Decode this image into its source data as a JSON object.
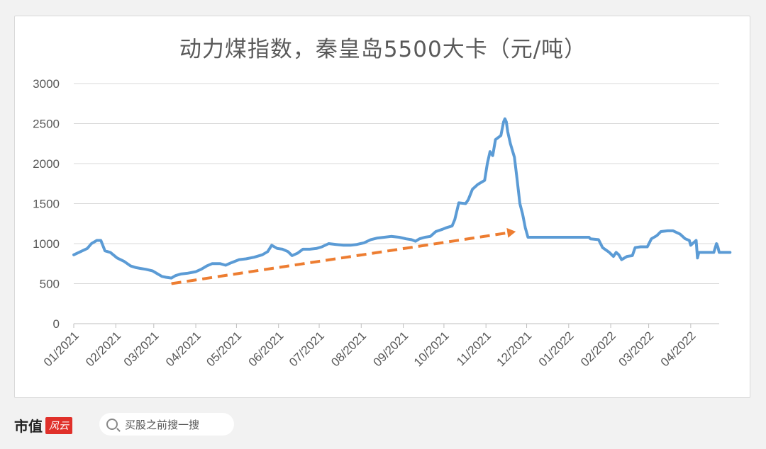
{
  "chart_data": {
    "type": "line",
    "title": "动力煤指数，秦皇岛5500大卡（元/吨）",
    "ylim": [
      0,
      3000
    ],
    "yticks": [
      0,
      500,
      1000,
      1500,
      2000,
      2500,
      3000
    ],
    "xtick_labels": [
      "01/2021",
      "02/2021",
      "03/2021",
      "04/2021",
      "05/2021",
      "06/2021",
      "07/2021",
      "08/2021",
      "09/2021",
      "10/2021",
      "11/2021",
      "12/2021",
      "01/2022",
      "02/2022",
      "03/2022",
      "04/2022"
    ],
    "x_range": [
      "2021-01-01",
      "2022-04-22"
    ],
    "grid": true,
    "series": [
      {
        "color": "#5b9bd5",
        "points": [
          [
            "2021-01-01",
            860
          ],
          [
            "2021-01-06",
            900
          ],
          [
            "2021-01-11",
            940
          ],
          [
            "2021-01-14",
            1000
          ],
          [
            "2021-01-18",
            1040
          ],
          [
            "2021-01-21",
            1040
          ],
          [
            "2021-01-24",
            910
          ],
          [
            "2021-01-28",
            890
          ],
          [
            "2021-02-02",
            820
          ],
          [
            "2021-02-07",
            780
          ],
          [
            "2021-02-12",
            720
          ],
          [
            "2021-02-16",
            700
          ],
          [
            "2021-02-19",
            690
          ],
          [
            "2021-02-23",
            680
          ],
          [
            "2021-02-28",
            660
          ],
          [
            "2021-03-04",
            620
          ],
          [
            "2021-03-07",
            590
          ],
          [
            "2021-03-10",
            580
          ],
          [
            "2021-03-14",
            570
          ],
          [
            "2021-03-17",
            600
          ],
          [
            "2021-03-21",
            620
          ],
          [
            "2021-03-26",
            630
          ],
          [
            "2021-04-01",
            650
          ],
          [
            "2021-04-05",
            680
          ],
          [
            "2021-04-09",
            720
          ],
          [
            "2021-04-13",
            750
          ],
          [
            "2021-04-19",
            750
          ],
          [
            "2021-04-23",
            730
          ],
          [
            "2021-04-27",
            760
          ],
          [
            "2021-05-03",
            800
          ],
          [
            "2021-05-08",
            810
          ],
          [
            "2021-05-14",
            830
          ],
          [
            "2021-05-20",
            860
          ],
          [
            "2021-05-24",
            900
          ],
          [
            "2021-05-27",
            980
          ],
          [
            "2021-05-31",
            940
          ],
          [
            "2021-06-04",
            930
          ],
          [
            "2021-06-08",
            900
          ],
          [
            "2021-06-11",
            850
          ],
          [
            "2021-06-15",
            880
          ],
          [
            "2021-06-19",
            930
          ],
          [
            "2021-06-24",
            930
          ],
          [
            "2021-06-29",
            940
          ],
          [
            "2021-07-03",
            960
          ],
          [
            "2021-07-08",
            1000
          ],
          [
            "2021-07-13",
            990
          ],
          [
            "2021-07-19",
            980
          ],
          [
            "2021-07-24",
            980
          ],
          [
            "2021-07-29",
            990
          ],
          [
            "2021-08-03",
            1010
          ],
          [
            "2021-08-08",
            1050
          ],
          [
            "2021-08-13",
            1070
          ],
          [
            "2021-08-18",
            1080
          ],
          [
            "2021-08-23",
            1090
          ],
          [
            "2021-08-29",
            1080
          ],
          [
            "2021-09-03",
            1060
          ],
          [
            "2021-09-07",
            1050
          ],
          [
            "2021-09-10",
            1030
          ],
          [
            "2021-09-13",
            1060
          ],
          [
            "2021-09-17",
            1080
          ],
          [
            "2021-09-21",
            1090
          ],
          [
            "2021-09-25",
            1150
          ],
          [
            "2021-09-30",
            1180
          ],
          [
            "2021-10-03",
            1200
          ],
          [
            "2021-10-07",
            1220
          ],
          [
            "2021-10-09",
            1300
          ],
          [
            "2021-10-12",
            1510
          ],
          [
            "2021-10-17",
            1500
          ],
          [
            "2021-10-19",
            1550
          ],
          [
            "2021-10-22",
            1680
          ],
          [
            "2021-10-26",
            1740
          ],
          [
            "2021-10-31",
            1790
          ],
          [
            "2021-11-02",
            2000
          ],
          [
            "2021-11-04",
            2150
          ],
          [
            "2021-11-06",
            2100
          ],
          [
            "2021-11-08",
            2300
          ],
          [
            "2021-11-12",
            2350
          ],
          [
            "2021-11-14",
            2520
          ],
          [
            "2021-11-15",
            2560
          ],
          [
            "2021-11-16",
            2520
          ],
          [
            "2021-11-17",
            2400
          ],
          [
            "2021-11-19",
            2250
          ],
          [
            "2021-11-22",
            2080
          ],
          [
            "2021-11-24",
            1800
          ],
          [
            "2021-11-26",
            1500
          ],
          [
            "2021-11-28",
            1370
          ],
          [
            "2021-11-30",
            1200
          ],
          [
            "2021-12-02",
            1080
          ],
          [
            "2021-12-31",
            1080
          ],
          [
            "2022-01-16",
            1080
          ],
          [
            "2022-01-17",
            1060
          ],
          [
            "2022-01-23",
            1050
          ],
          [
            "2022-01-26",
            950
          ],
          [
            "2022-01-31",
            890
          ],
          [
            "2022-02-03",
            840
          ],
          [
            "2022-02-05",
            890
          ],
          [
            "2022-02-07",
            860
          ],
          [
            "2022-02-09",
            800
          ],
          [
            "2022-02-13",
            840
          ],
          [
            "2022-02-17",
            850
          ],
          [
            "2022-02-19",
            950
          ],
          [
            "2022-02-23",
            960
          ],
          [
            "2022-02-28",
            960
          ],
          [
            "2022-03-03",
            1060
          ],
          [
            "2022-03-07",
            1100
          ],
          [
            "2022-03-10",
            1150
          ],
          [
            "2022-03-15",
            1160
          ],
          [
            "2022-03-19",
            1160
          ],
          [
            "2022-03-24",
            1120
          ],
          [
            "2022-03-28",
            1060
          ],
          [
            "2022-03-31",
            1040
          ],
          [
            "2022-04-01",
            980
          ],
          [
            "2022-04-03",
            1010
          ],
          [
            "2022-04-05",
            1040
          ],
          [
            "2022-04-06",
            820
          ],
          [
            "2022-04-07",
            890
          ],
          [
            "2022-04-12",
            890
          ],
          [
            "2022-04-15",
            890
          ],
          [
            "2022-04-18",
            890
          ],
          [
            "2022-04-20",
            1000
          ],
          [
            "2022-04-21",
            960
          ],
          [
            "2022-04-22",
            890
          ],
          [
            "2022-04-24",
            890
          ],
          [
            "2022-04-28",
            890
          ],
          [
            "2022-04-30",
            890
          ]
        ]
      }
    ],
    "trend_arrow": {
      "color": "#ed7d31",
      "from": [
        "2021-03-14",
        500
      ],
      "to": [
        "2021-11-23",
        1150
      ]
    }
  },
  "footer": {
    "brand": "市值",
    "brand_badge": "风云",
    "search_text": "买股之前搜一搜"
  }
}
